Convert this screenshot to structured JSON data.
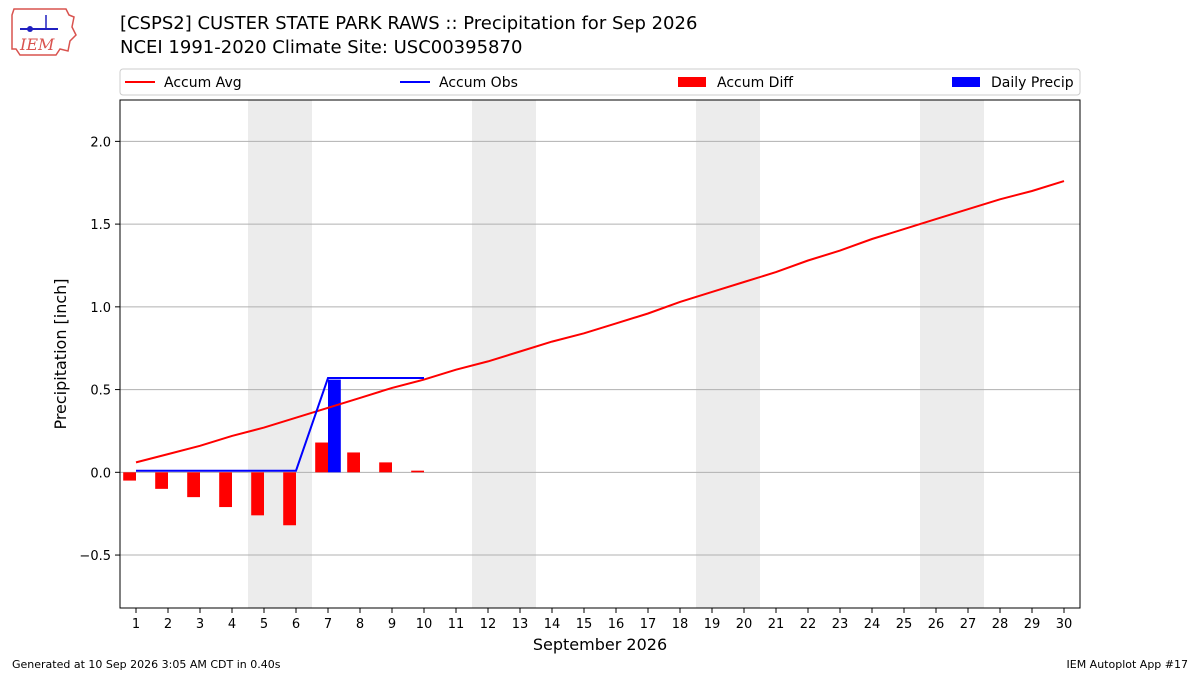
{
  "logo": {
    "text": "IEM"
  },
  "header": {
    "title": "[CSPS2] CUSTER STATE PARK RAWS :: Precipitation for Sep 2026",
    "subtitle": "NCEI 1991-2020 Climate Site: USC00395870"
  },
  "footer": {
    "generated": "Generated at 10 Sep 2026 3:05 AM CDT in 0.40s",
    "app": "IEM Autoplot App #17"
  },
  "chart_data": {
    "type": "bar",
    "xlabel": "September 2026",
    "ylabel": "Precipitation [inch]",
    "xlim": [
      0.5,
      30.5
    ],
    "ylim": [
      -0.82,
      2.25
    ],
    "y_ticks": [
      -0.5,
      0.0,
      0.5,
      1.0,
      1.5,
      2.0
    ],
    "y_tick_labels": [
      "−0.5",
      "0.0",
      "0.5",
      "1.0",
      "1.5",
      "2.0"
    ],
    "x_ticks": [
      1,
      2,
      3,
      4,
      5,
      6,
      7,
      8,
      9,
      10,
      11,
      12,
      13,
      14,
      15,
      16,
      17,
      18,
      19,
      20,
      21,
      22,
      23,
      24,
      25,
      26,
      27,
      28,
      29,
      30
    ],
    "x_tick_labels": [
      "1",
      "2",
      "3",
      "4",
      "5",
      "6",
      "7",
      "8",
      "9",
      "10",
      "11",
      "12",
      "13",
      "14",
      "15",
      "16",
      "17",
      "18",
      "19",
      "20",
      "21",
      "22",
      "23",
      "24",
      "25",
      "26",
      "27",
      "28",
      "29",
      "30"
    ],
    "grid": "horizontal",
    "weekend_shading": [
      [
        4.5,
        6.5
      ],
      [
        11.5,
        13.5
      ],
      [
        18.5,
        20.5
      ],
      [
        25.5,
        27.5
      ]
    ],
    "legend": {
      "placement": "top",
      "entries": [
        {
          "label": "Accum Avg",
          "kind": "line",
          "color": "#ff0000"
        },
        {
          "label": "Accum Obs",
          "kind": "line",
          "color": "#0000ff"
        },
        {
          "label": "Accum Diff",
          "kind": "bar",
          "color": "#ff0000"
        },
        {
          "label": "Daily Precip",
          "kind": "bar",
          "color": "#0000ff"
        }
      ]
    },
    "series": [
      {
        "name": "Accum Avg",
        "type": "line",
        "color": "#ff0000",
        "x": [
          1,
          2,
          3,
          4,
          5,
          6,
          7,
          8,
          9,
          10,
          11,
          12,
          13,
          14,
          15,
          16,
          17,
          18,
          19,
          20,
          21,
          22,
          23,
          24,
          25,
          26,
          27,
          28,
          29,
          30
        ],
        "values": [
          0.06,
          0.11,
          0.16,
          0.22,
          0.27,
          0.33,
          0.39,
          0.45,
          0.51,
          0.56,
          0.62,
          0.67,
          0.73,
          0.79,
          0.84,
          0.9,
          0.96,
          1.03,
          1.09,
          1.15,
          1.21,
          1.28,
          1.34,
          1.41,
          1.47,
          1.53,
          1.59,
          1.65,
          1.7,
          1.76
        ]
      },
      {
        "name": "Accum Obs",
        "type": "line",
        "color": "#0000ff",
        "x": [
          1,
          2,
          3,
          4,
          5,
          6,
          7,
          8,
          9,
          10
        ],
        "values": [
          0.01,
          0.01,
          0.01,
          0.01,
          0.01,
          0.01,
          0.57,
          0.57,
          0.57,
          0.57
        ]
      },
      {
        "name": "Accum Diff",
        "type": "bar",
        "color": "#ff0000",
        "x": [
          1,
          2,
          3,
          4,
          5,
          6,
          7,
          8,
          9,
          10
        ],
        "values": [
          -0.05,
          -0.1,
          -0.15,
          -0.21,
          -0.26,
          -0.32,
          0.18,
          0.12,
          0.06,
          0.01
        ]
      },
      {
        "name": "Daily Precip",
        "type": "bar",
        "color": "#0000ff",
        "x": [
          1,
          2,
          3,
          4,
          5,
          6,
          7,
          8,
          9,
          10
        ],
        "values": [
          0,
          0,
          0,
          0,
          0,
          0,
          0.56,
          0,
          0,
          0
        ]
      }
    ]
  }
}
